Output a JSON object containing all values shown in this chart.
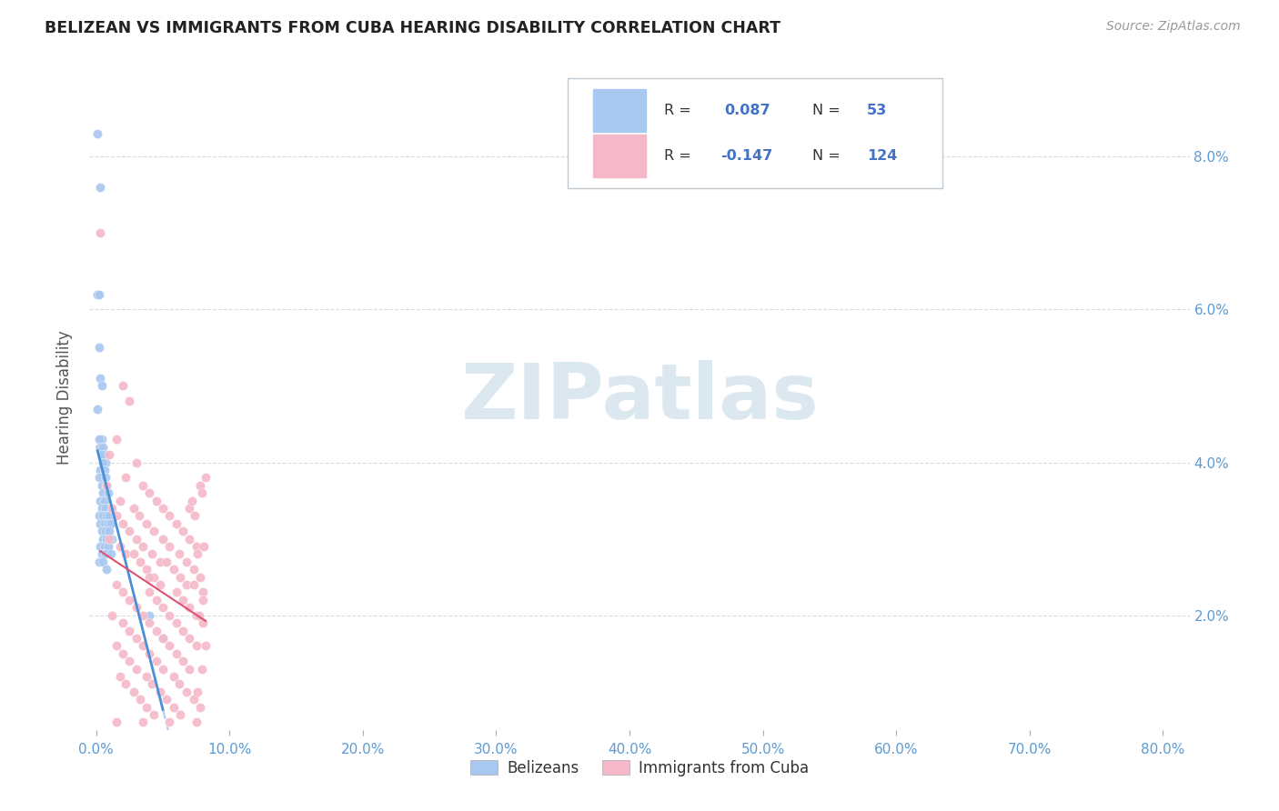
{
  "title": "BELIZEAN VS IMMIGRANTS FROM CUBA HEARING DISABILITY CORRELATION CHART",
  "source": "Source: ZipAtlas.com",
  "ylabel": "Hearing Disability",
  "ytick_labels": [
    "2.0%",
    "4.0%",
    "6.0%",
    "8.0%"
  ],
  "ytick_values": [
    0.02,
    0.04,
    0.06,
    0.08
  ],
  "xtick_values": [
    0.0,
    0.1,
    0.2,
    0.3,
    0.4,
    0.5,
    0.6,
    0.7,
    0.8
  ],
  "xlim": [
    -0.005,
    0.82
  ],
  "ylim": [
    0.005,
    0.092
  ],
  "belizean_R": 0.087,
  "belizean_N": 53,
  "cuba_R": -0.147,
  "cuba_N": 124,
  "belizean_color": "#a8c8f0",
  "cuba_color": "#f5b8c8",
  "belizean_line_color": "#4a90d9",
  "cuba_line_color": "#e05070",
  "trendline_dashed_color": "#b0ccee",
  "watermark_color": "#dce8f0",
  "legend_text_color": "#4472c4",
  "background_color": "#ffffff",
  "grid_color": "#d0dce8",
  "belizean_points": [
    [
      0.001,
      0.083
    ],
    [
      0.003,
      0.076
    ],
    [
      0.001,
      0.062
    ],
    [
      0.002,
      0.062
    ],
    [
      0.002,
      0.055
    ],
    [
      0.003,
      0.051
    ],
    [
      0.004,
      0.05
    ],
    [
      0.001,
      0.047
    ],
    [
      0.004,
      0.043
    ],
    [
      0.002,
      0.043
    ],
    [
      0.003,
      0.042
    ],
    [
      0.005,
      0.042
    ],
    [
      0.006,
      0.041
    ],
    [
      0.004,
      0.041
    ],
    [
      0.007,
      0.04
    ],
    [
      0.005,
      0.04
    ],
    [
      0.003,
      0.039
    ],
    [
      0.006,
      0.039
    ],
    [
      0.002,
      0.038
    ],
    [
      0.007,
      0.038
    ],
    [
      0.004,
      0.037
    ],
    [
      0.008,
      0.037
    ],
    [
      0.005,
      0.036
    ],
    [
      0.009,
      0.036
    ],
    [
      0.003,
      0.035
    ],
    [
      0.006,
      0.035
    ],
    [
      0.004,
      0.034
    ],
    [
      0.007,
      0.034
    ],
    [
      0.002,
      0.033
    ],
    [
      0.005,
      0.033
    ],
    [
      0.008,
      0.033
    ],
    [
      0.01,
      0.033
    ],
    [
      0.003,
      0.032
    ],
    [
      0.006,
      0.032
    ],
    [
      0.009,
      0.032
    ],
    [
      0.011,
      0.032
    ],
    [
      0.004,
      0.031
    ],
    [
      0.007,
      0.031
    ],
    [
      0.01,
      0.031
    ],
    [
      0.005,
      0.03
    ],
    [
      0.008,
      0.03
    ],
    [
      0.012,
      0.03
    ],
    [
      0.003,
      0.029
    ],
    [
      0.006,
      0.029
    ],
    [
      0.009,
      0.029
    ],
    [
      0.004,
      0.028
    ],
    [
      0.007,
      0.028
    ],
    [
      0.011,
      0.028
    ],
    [
      0.002,
      0.027
    ],
    [
      0.005,
      0.027
    ],
    [
      0.008,
      0.026
    ],
    [
      0.04,
      0.02
    ],
    [
      0.05,
      0.017
    ]
  ],
  "cuba_points": [
    [
      0.003,
      0.07
    ],
    [
      0.02,
      0.05
    ],
    [
      0.025,
      0.048
    ],
    [
      0.015,
      0.043
    ],
    [
      0.01,
      0.041
    ],
    [
      0.03,
      0.04
    ],
    [
      0.022,
      0.038
    ],
    [
      0.008,
      0.037
    ],
    [
      0.035,
      0.037
    ],
    [
      0.04,
      0.036
    ],
    [
      0.018,
      0.035
    ],
    [
      0.045,
      0.035
    ],
    [
      0.012,
      0.034
    ],
    [
      0.028,
      0.034
    ],
    [
      0.05,
      0.034
    ],
    [
      0.07,
      0.034
    ],
    [
      0.015,
      0.033
    ],
    [
      0.032,
      0.033
    ],
    [
      0.055,
      0.033
    ],
    [
      0.02,
      0.032
    ],
    [
      0.038,
      0.032
    ],
    [
      0.06,
      0.032
    ],
    [
      0.025,
      0.031
    ],
    [
      0.043,
      0.031
    ],
    [
      0.065,
      0.031
    ],
    [
      0.01,
      0.03
    ],
    [
      0.03,
      0.03
    ],
    [
      0.05,
      0.03
    ],
    [
      0.07,
      0.03
    ],
    [
      0.018,
      0.029
    ],
    [
      0.035,
      0.029
    ],
    [
      0.055,
      0.029
    ],
    [
      0.075,
      0.029
    ],
    [
      0.022,
      0.028
    ],
    [
      0.042,
      0.028
    ],
    [
      0.062,
      0.028
    ],
    [
      0.028,
      0.028
    ],
    [
      0.048,
      0.027
    ],
    [
      0.068,
      0.027
    ],
    [
      0.033,
      0.027
    ],
    [
      0.053,
      0.027
    ],
    [
      0.073,
      0.026
    ],
    [
      0.038,
      0.026
    ],
    [
      0.058,
      0.026
    ],
    [
      0.078,
      0.025
    ],
    [
      0.043,
      0.025
    ],
    [
      0.063,
      0.025
    ],
    [
      0.015,
      0.024
    ],
    [
      0.048,
      0.024
    ],
    [
      0.068,
      0.024
    ],
    [
      0.02,
      0.023
    ],
    [
      0.04,
      0.023
    ],
    [
      0.06,
      0.023
    ],
    [
      0.08,
      0.023
    ],
    [
      0.025,
      0.022
    ],
    [
      0.045,
      0.022
    ],
    [
      0.065,
      0.022
    ],
    [
      0.03,
      0.021
    ],
    [
      0.05,
      0.021
    ],
    [
      0.07,
      0.021
    ],
    [
      0.012,
      0.02
    ],
    [
      0.035,
      0.02
    ],
    [
      0.055,
      0.02
    ],
    [
      0.075,
      0.02
    ],
    [
      0.02,
      0.019
    ],
    [
      0.04,
      0.019
    ],
    [
      0.06,
      0.019
    ],
    [
      0.08,
      0.019
    ],
    [
      0.025,
      0.018
    ],
    [
      0.045,
      0.018
    ],
    [
      0.065,
      0.018
    ],
    [
      0.03,
      0.017
    ],
    [
      0.05,
      0.017
    ],
    [
      0.07,
      0.017
    ],
    [
      0.015,
      0.016
    ],
    [
      0.035,
      0.016
    ],
    [
      0.055,
      0.016
    ],
    [
      0.075,
      0.016
    ],
    [
      0.02,
      0.015
    ],
    [
      0.04,
      0.015
    ],
    [
      0.06,
      0.015
    ],
    [
      0.025,
      0.014
    ],
    [
      0.045,
      0.014
    ],
    [
      0.065,
      0.014
    ],
    [
      0.03,
      0.013
    ],
    [
      0.05,
      0.013
    ],
    [
      0.07,
      0.013
    ],
    [
      0.018,
      0.012
    ],
    [
      0.038,
      0.012
    ],
    [
      0.058,
      0.012
    ],
    [
      0.022,
      0.011
    ],
    [
      0.042,
      0.011
    ],
    [
      0.062,
      0.011
    ],
    [
      0.028,
      0.01
    ],
    [
      0.048,
      0.01
    ],
    [
      0.068,
      0.01
    ],
    [
      0.033,
      0.009
    ],
    [
      0.053,
      0.009
    ],
    [
      0.073,
      0.009
    ],
    [
      0.038,
      0.008
    ],
    [
      0.058,
      0.008
    ],
    [
      0.078,
      0.008
    ],
    [
      0.043,
      0.007
    ],
    [
      0.063,
      0.007
    ],
    [
      0.015,
      0.006
    ],
    [
      0.035,
      0.006
    ],
    [
      0.055,
      0.006
    ],
    [
      0.075,
      0.006
    ],
    [
      0.04,
      0.025
    ],
    [
      0.072,
      0.035
    ],
    [
      0.078,
      0.037
    ],
    [
      0.082,
      0.038
    ],
    [
      0.079,
      0.036
    ],
    [
      0.076,
      0.028
    ],
    [
      0.074,
      0.033
    ],
    [
      0.08,
      0.022
    ],
    [
      0.077,
      0.02
    ],
    [
      0.082,
      0.016
    ],
    [
      0.079,
      0.013
    ],
    [
      0.076,
      0.01
    ],
    [
      0.073,
      0.024
    ],
    [
      0.081,
      0.029
    ]
  ]
}
